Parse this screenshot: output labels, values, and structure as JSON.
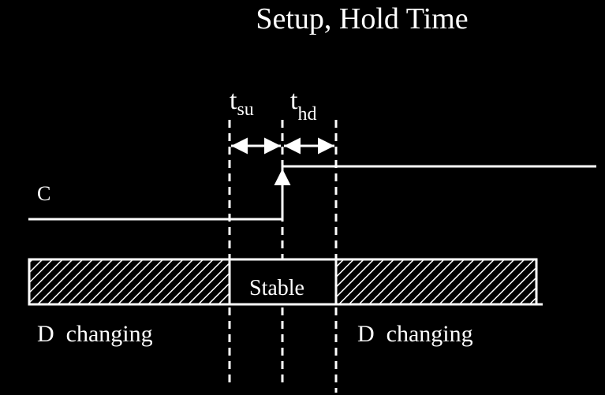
{
  "title": "Setup, Hold Time",
  "labels": {
    "clock": "C",
    "stable": "Stable",
    "d_changing_left": "D  changing",
    "d_changing_right": "D  changing"
  },
  "timing": {
    "setup": {
      "base": "t",
      "sub": "su"
    },
    "hold": {
      "base": "t",
      "sub": "hd"
    }
  },
  "colors": {
    "background": "#000000",
    "foreground": "#ffffff"
  }
}
